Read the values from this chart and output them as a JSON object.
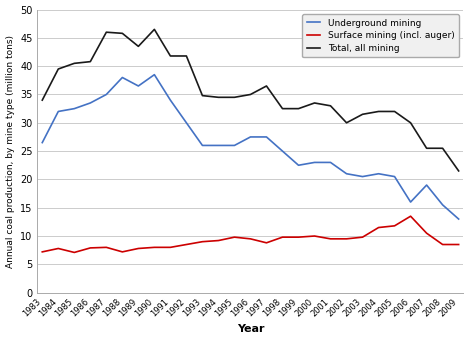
{
  "years": [
    1983,
    1984,
    1985,
    1986,
    1987,
    1988,
    1989,
    1990,
    1991,
    1992,
    1993,
    1994,
    1995,
    1996,
    1997,
    1998,
    1999,
    2000,
    2001,
    2002,
    2003,
    2004,
    2005,
    2006,
    2007,
    2008,
    2009
  ],
  "underground": [
    26.5,
    32.0,
    32.5,
    33.5,
    35.0,
    38.0,
    36.5,
    38.5,
    34.0,
    30.0,
    26.0,
    26.0,
    26.0,
    27.5,
    27.5,
    25.0,
    22.5,
    23.0,
    23.0,
    21.0,
    20.5,
    21.0,
    20.5,
    16.0,
    19.0,
    15.5,
    13.0
  ],
  "surface": [
    7.2,
    7.8,
    7.1,
    7.9,
    8.0,
    7.2,
    7.8,
    8.0,
    8.0,
    8.5,
    9.0,
    9.2,
    9.8,
    9.5,
    8.8,
    9.8,
    9.8,
    10.0,
    9.5,
    9.5,
    9.8,
    11.5,
    11.8,
    13.5,
    10.5,
    8.5,
    8.5
  ],
  "total": [
    34.0,
    39.5,
    40.5,
    40.8,
    46.0,
    45.8,
    43.5,
    46.5,
    41.8,
    41.8,
    34.8,
    34.5,
    34.5,
    35.0,
    36.5,
    32.5,
    32.5,
    33.5,
    33.0,
    30.0,
    31.5,
    32.0,
    32.0,
    30.0,
    25.5,
    25.5,
    21.5
  ],
  "underground_color": "#4472C4",
  "surface_color": "#CC0000",
  "total_color": "#1A1A1A",
  "ylabel": "Annual coal production, by mine type (million tons)",
  "xlabel": "Year",
  "ylim": [
    0,
    50
  ],
  "yticks": [
    0,
    5,
    10,
    15,
    20,
    25,
    30,
    35,
    40,
    45,
    50
  ],
  "legend_labels": [
    "Underground mining",
    "Surface mining (incl. auger)",
    "Total, all mining"
  ],
  "grid_color": "#CCCCCC"
}
